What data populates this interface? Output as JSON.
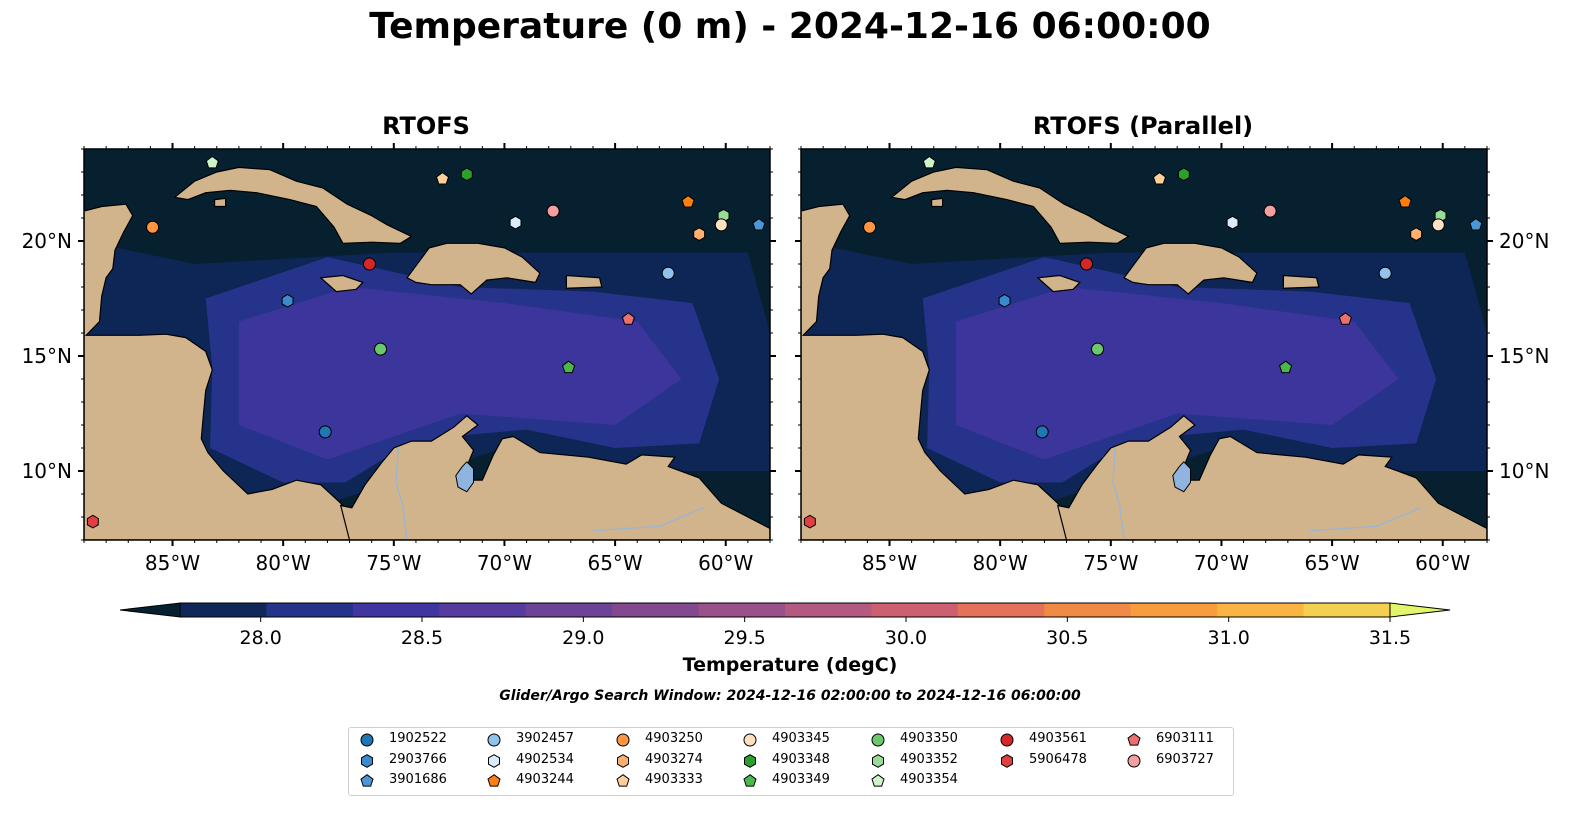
{
  "title": "Temperature (0 m) - 2024-12-16 06:00:00",
  "panels": [
    {
      "title": "RTOFS"
    },
    {
      "title": "RTOFS (Parallel)"
    }
  ],
  "map": {
    "lon_range": [
      -89,
      -58
    ],
    "lat_range": [
      7,
      24
    ],
    "lon_ticks": [
      "85°W",
      "80°W",
      "75°W",
      "70°W",
      "65°W",
      "60°W"
    ],
    "lat_ticks": [
      "20°N",
      "15°N",
      "10°N"
    ],
    "colors": {
      "ocean_dark": "#072030",
      "land": "#d2b48c",
      "lake": "#8fb4e0",
      "river": "#9fb5cc"
    }
  },
  "colorbar": {
    "label": "Temperature (degC)",
    "ticks": [
      "28.0",
      "28.5",
      "29.0",
      "29.5",
      "30.0",
      "30.5",
      "31.0",
      "31.5"
    ],
    "range": [
      27.75,
      31.5
    ],
    "extend": "both",
    "colors": [
      "#072030",
      "#10275a",
      "#26338a",
      "#41369f",
      "#573ca0",
      "#6d4398",
      "#83498f",
      "#9a5089",
      "#b45a80",
      "#cd6070",
      "#e47158",
      "#f08a46",
      "#f79d3d",
      "#f9b444",
      "#f5cf50",
      "#e3f56b"
    ]
  },
  "search_window": "Glider/Argo Search Window: 2024-12-16 02:00:00 to 2024-12-16 06:00:00",
  "legend": {
    "columns": [
      [
        {
          "id": "1902522",
          "shape": "circle",
          "color": "#1f77b4"
        },
        {
          "id": "2903766",
          "shape": "hexagon",
          "color": "#3a8ad0"
        },
        {
          "id": "3901686",
          "shape": "pentagon",
          "color": "#4a96d6"
        }
      ],
      [
        {
          "id": "3902457",
          "shape": "circle",
          "color": "#8fc3ec"
        },
        {
          "id": "4902534",
          "shape": "hexagon",
          "color": "#d8ecfa"
        },
        {
          "id": "4903244",
          "shape": "pentagon",
          "color": "#ff7f0e"
        }
      ],
      [
        {
          "id": "4903250",
          "shape": "circle",
          "color": "#ff9540"
        },
        {
          "id": "4903274",
          "shape": "hexagon",
          "color": "#ffb070"
        },
        {
          "id": "4903333",
          "shape": "pentagon",
          "color": "#ffcf9a"
        }
      ],
      [
        {
          "id": "4903345",
          "shape": "circle",
          "color": "#ffe0c0"
        },
        {
          "id": "4903348",
          "shape": "hexagon",
          "color": "#2ca02c"
        },
        {
          "id": "4903349",
          "shape": "pentagon",
          "color": "#4cb84c"
        }
      ],
      [
        {
          "id": "4903350",
          "shape": "circle",
          "color": "#6cc86c"
        },
        {
          "id": "4903352",
          "shape": "hexagon",
          "color": "#98dc98"
        },
        {
          "id": "4903354",
          "shape": "pentagon",
          "color": "#cdf5c8"
        }
      ],
      [
        {
          "id": "4903561",
          "shape": "circle",
          "color": "#d62728"
        },
        {
          "id": "5906478",
          "shape": "hexagon",
          "color": "#e04040"
        }
      ],
      [
        {
          "id": "6903111",
          "shape": "pentagon",
          "color": "#ec7070"
        },
        {
          "id": "6903727",
          "shape": "circle",
          "color": "#f4a0a0"
        }
      ]
    ]
  },
  "platforms": [
    {
      "id": "4903354",
      "lon": -83.2,
      "lat": 23.4
    },
    {
      "id": "4903333",
      "lon": -72.8,
      "lat": 22.7
    },
    {
      "id": "4903348",
      "lon": -71.7,
      "lat": 22.9
    },
    {
      "id": "4903244",
      "lon": -61.7,
      "lat": 21.7
    },
    {
      "id": "4903352",
      "lon": -60.1,
      "lat": 21.1
    },
    {
      "id": "4903345",
      "lon": -60.2,
      "lat": 20.7
    },
    {
      "id": "4903274",
      "lon": -61.2,
      "lat": 20.3
    },
    {
      "id": "3901686",
      "lon": -58.5,
      "lat": 20.7
    },
    {
      "id": "6903727",
      "lon": -67.8,
      "lat": 21.3
    },
    {
      "id": "4902534",
      "lon": -69.5,
      "lat": 20.8
    },
    {
      "id": "4903250",
      "lon": -85.9,
      "lat": 20.6
    },
    {
      "id": "4903561",
      "lon": -76.1,
      "lat": 19.0
    },
    {
      "id": "3902457",
      "lon": -62.6,
      "lat": 18.6
    },
    {
      "id": "2903766",
      "lon": -79.8,
      "lat": 17.4
    },
    {
      "id": "6903111",
      "lon": -64.4,
      "lat": 16.6
    },
    {
      "id": "4903350",
      "lon": -75.6,
      "lat": 15.3
    },
    {
      "id": "4903349",
      "lon": -67.1,
      "lat": 14.5
    },
    {
      "id": "1902522",
      "lon": -78.1,
      "lat": 11.7
    },
    {
      "id": "5906478",
      "lon": -88.6,
      "lat": 7.8
    }
  ]
}
